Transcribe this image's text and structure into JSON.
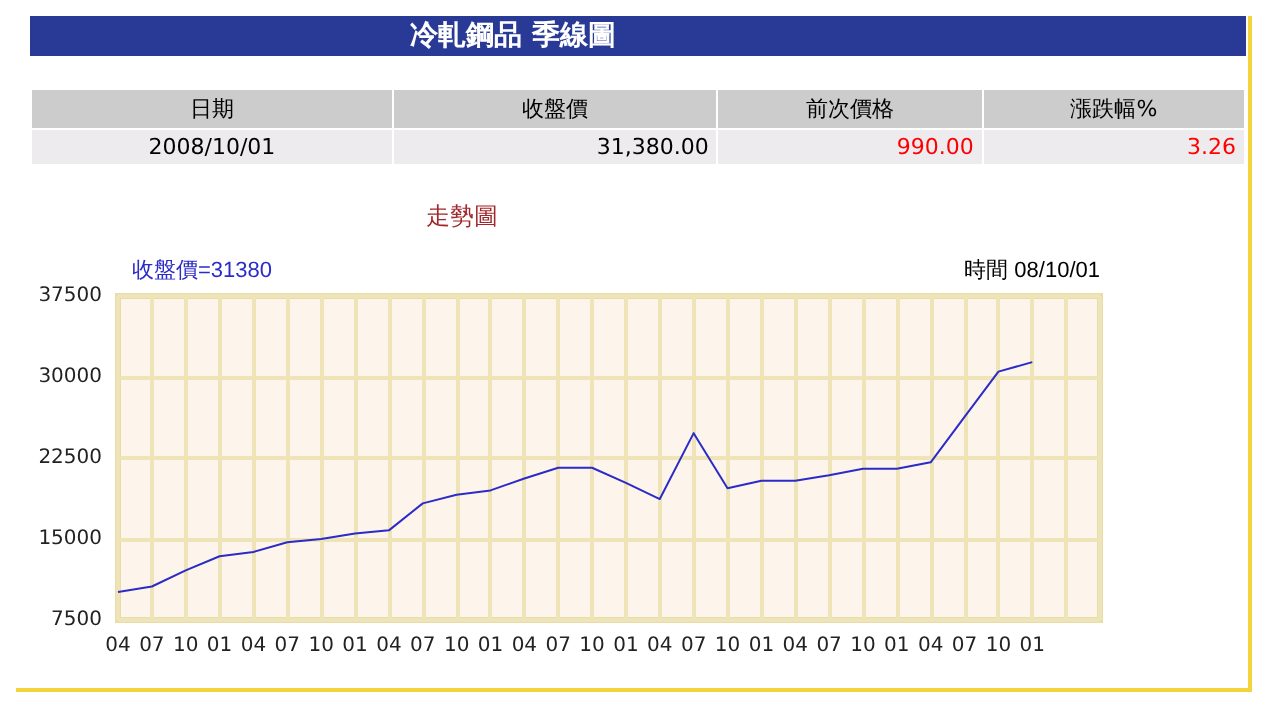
{
  "chart_data": {
    "type": "line",
    "title": "冷軋鋼品 季線圖",
    "subtitle": "走勢圖",
    "annotations": [
      "日期",
      "收盤價",
      "前次價格",
      "漲跌幅%",
      "2008/10/01",
      "31,380.00",
      "990.00",
      "3.26",
      "收盤價=31380",
      "時間 08/10/01"
    ],
    "categories": [
      "04",
      "07",
      "10",
      "01",
      "04",
      "07",
      "10",
      "01",
      "04",
      "07",
      "10",
      "01",
      "04",
      "07",
      "10",
      "01",
      "04",
      "07",
      "10",
      "01",
      "04",
      "07",
      "10",
      "01",
      "04",
      "07",
      "10",
      "01",
      null,
      null
    ],
    "series": [
      {
        "color": "#2b2bc8",
        "values": [
          10100,
          10600,
          12100,
          13400,
          13800,
          14700,
          15000,
          15500,
          15800,
          18300,
          19100,
          19500,
          20600,
          21600,
          21600,
          20200,
          18700,
          24800,
          19700,
          20400,
          20400,
          20900,
          21500,
          21500,
          22100,
          26300,
          30500,
          31380,
          null,
          null
        ]
      }
    ],
    "ylim": [
      7500,
      37500
    ],
    "yticks": [
      7500,
      15000,
      22500,
      30000,
      37500
    ],
    "grid": true,
    "marker": "none",
    "line_style": "solid"
  }
}
